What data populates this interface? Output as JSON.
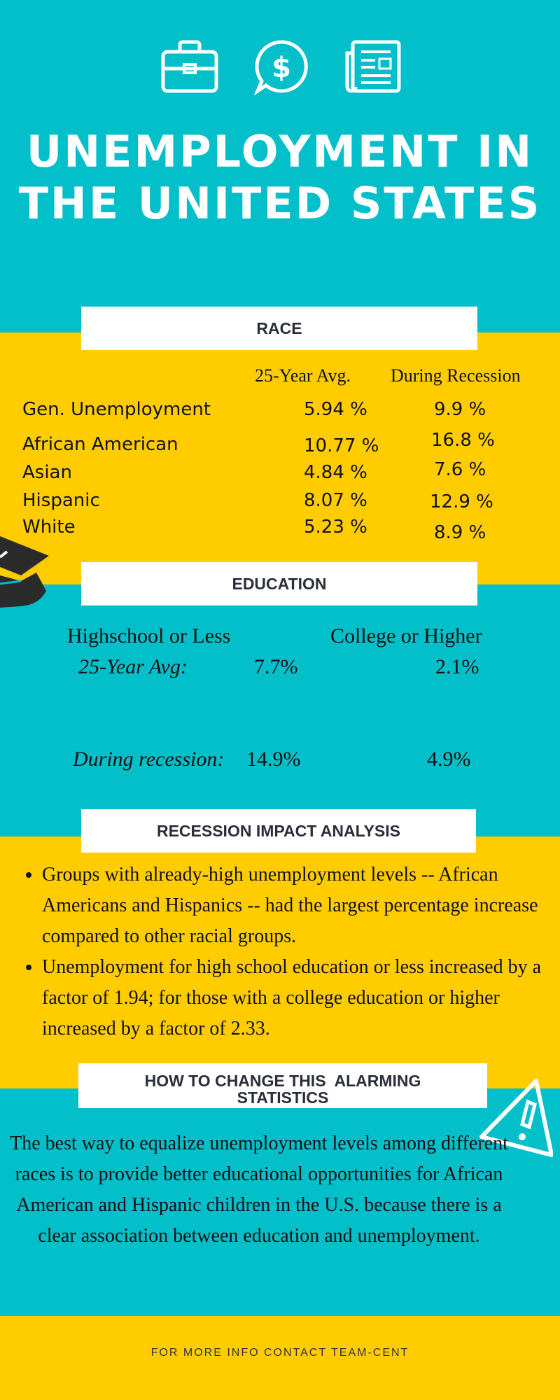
{
  "title_line1": "UNEMPLOYMENT IN",
  "title_line2": "THE UNITED STATES",
  "icons": [
    "briefcase-icon",
    "dollar-chat-icon",
    "newspaper-icon",
    "graduation-cap-icon",
    "warning-icon"
  ],
  "colors": {
    "teal": "#03bfca",
    "yellow": "#ffcc00",
    "white": "#ffffff",
    "heading_text": "#2a2e3a"
  },
  "race": {
    "heading": "RACE",
    "col_avg": "25-Year Avg.",
    "col_recession": "During Recession",
    "rows": [
      {
        "label": "Gen. Unemployment",
        "avg": "5.94 %",
        "recession": "9.9 %"
      },
      {
        "label": "African American",
        "avg": "10.77 %",
        "recession": "16.8 %"
      },
      {
        "label": "Asian",
        "avg": "4.84 %",
        "recession": "7.6 %"
      },
      {
        "label": "Hispanic",
        "avg": "8.07 %",
        "recession": "12.9 %"
      },
      {
        "label": "White",
        "avg": "5.23 %",
        "recession": "8.9 %"
      }
    ]
  },
  "education": {
    "heading": "EDUCATION",
    "col_hs": "Highschool or Less",
    "col_college": "College or Higher",
    "avg_label": "25-Year Avg:",
    "avg_hs": "7.7%",
    "avg_college": "2.1%",
    "recession_label": "During recession:",
    "recession_hs": "14.9%",
    "recession_college": "4.9%"
  },
  "impact": {
    "heading": "RECESSION IMPACT ANALYSIS",
    "bullets": [
      "Groups with already-high unemployment levels -- African Americans and Hispanics -- had the largest percentage increase compared to other racial groups.",
      "Unemployment for high school education or less increased by a factor of 1.94; for those with a college education or higher increased by a factor of 2.33."
    ]
  },
  "change": {
    "heading_line1": "HOW TO CHANGE THIS  ALARMING",
    "heading_line2": "STATISTICS",
    "text": "The best way to equalize unemployment levels among different races is to provide better educational opportunities for African American and Hispanic children in the U.S. because there is a clear association between education and unemployment."
  },
  "footer": "FOR MORE INFO CONTACT TEAM-CENT"
}
